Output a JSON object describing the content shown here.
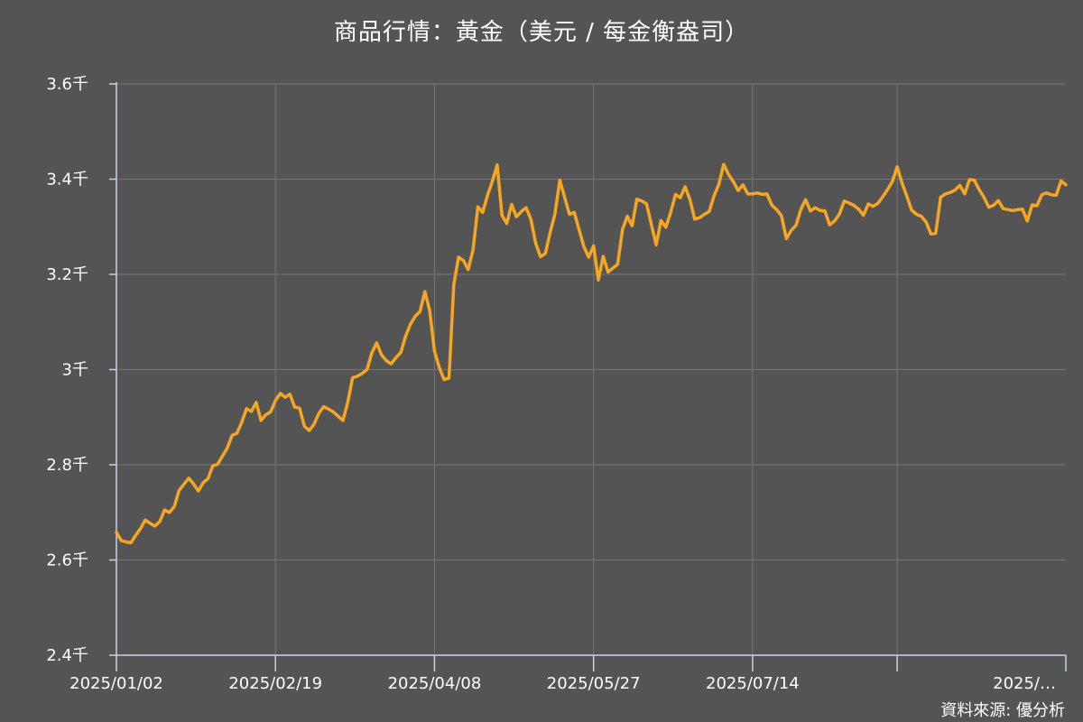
{
  "chart_data": {
    "type": "line",
    "title": "商品行情：黃金（美元 / 每金衡盎司）",
    "source": "資料來源: 優分析",
    "xlabel": "",
    "ylabel": "",
    "ylim": [
      2400,
      3600
    ],
    "yticks": [
      {
        "value": 2400,
        "label": "2.4千"
      },
      {
        "value": 2600,
        "label": "2.6千"
      },
      {
        "value": 2800,
        "label": "2.8千"
      },
      {
        "value": 3000,
        "label": "3千"
      },
      {
        "value": 3200,
        "label": "3.2千"
      },
      {
        "value": 3400,
        "label": "3.4千"
      },
      {
        "value": 3600,
        "label": "3.6千"
      }
    ],
    "xticks": [
      {
        "index": 0,
        "label": "2025/01/02"
      },
      {
        "index": 33,
        "label": "2025/02/19"
      },
      {
        "index": 66,
        "label": "2025/04/08"
      },
      {
        "index": 99,
        "label": "2025/05/27"
      },
      {
        "index": 132,
        "label": "2025/07/14"
      },
      {
        "index": 162,
        "label": "2025/…"
      }
    ],
    "grid": true,
    "legend": "none",
    "colors": {
      "background": "#545454",
      "line": "#f5a623",
      "grid": "#777777",
      "axis": "#c8d4ea",
      "text": "#ffffff"
    },
    "series": [
      {
        "values": [
          2658,
          2641,
          2638,
          2636,
          2652,
          2666,
          2684,
          2677,
          2671,
          2681,
          2705,
          2700,
          2712,
          2746,
          2759,
          2772,
          2760,
          2745,
          2762,
          2771,
          2798,
          2801,
          2818,
          2835,
          2862,
          2866,
          2889,
          2918,
          2912,
          2931,
          2893,
          2905,
          2911,
          2935,
          2950,
          2942,
          2948,
          2921,
          2919,
          2881,
          2872,
          2885,
          2908,
          2922,
          2917,
          2911,
          2902,
          2893,
          2931,
          2983,
          2986,
          2992,
          3000,
          3035,
          3056,
          3031,
          3019,
          3012,
          3025,
          3036,
          3070,
          3095,
          3112,
          3122,
          3164,
          3124,
          3039,
          3004,
          2979,
          2982,
          3178,
          3236,
          3229,
          3210,
          3252,
          3342,
          3330,
          3366,
          3395,
          3430,
          3324,
          3307,
          3347,
          3321,
          3332,
          3340,
          3316,
          3265,
          3237,
          3244,
          3288,
          3327,
          3398,
          3362,
          3326,
          3330,
          3294,
          3258,
          3236,
          3260,
          3188,
          3238,
          3205,
          3213,
          3221,
          3294,
          3322,
          3302,
          3358,
          3354,
          3348,
          3304,
          3262,
          3313,
          3299,
          3330,
          3368,
          3361,
          3384,
          3357,
          3316,
          3319,
          3326,
          3332,
          3365,
          3389,
          3431,
          3410,
          3395,
          3376,
          3388,
          3369,
          3369,
          3371,
          3368,
          3369,
          3345,
          3336,
          3323,
          3275,
          3292,
          3303,
          3336,
          3357,
          3333,
          3340,
          3334,
          3333,
          3304,
          3312,
          3326,
          3354,
          3350,
          3345,
          3337,
          3324,
          3348,
          3343,
          3349,
          3363,
          3378,
          3395,
          3426,
          3392,
          3364,
          3335,
          3326,
          3322,
          3310,
          3285,
          3286,
          3362,
          3369,
          3372,
          3377,
          3387,
          3369,
          3399,
          3398,
          3378,
          3362,
          3341,
          3345,
          3355,
          3338,
          3336,
          3334,
          3336,
          3337,
          3312,
          3346,
          3344,
          3367,
          3371,
          3367,
          3366,
          3396,
          3388
        ]
      }
    ]
  }
}
